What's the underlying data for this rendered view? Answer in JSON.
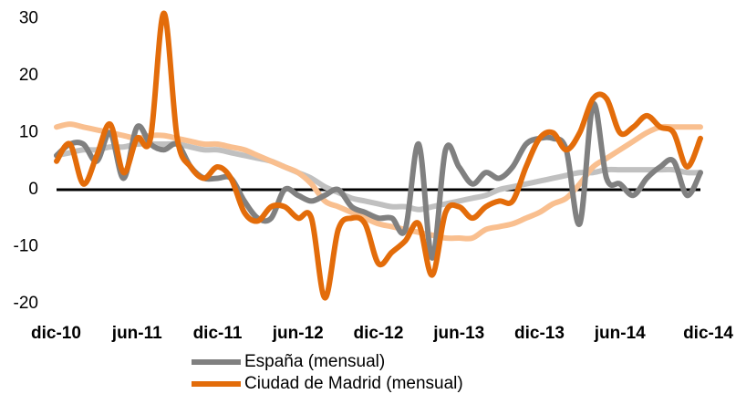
{
  "chart_data": {
    "type": "line",
    "categories": [
      "dic-10",
      null,
      null,
      null,
      null,
      null,
      "jun-11",
      null,
      null,
      null,
      null,
      null,
      "dic-11",
      null,
      null,
      null,
      null,
      null,
      "jun-12",
      null,
      null,
      null,
      null,
      null,
      "dic-12",
      null,
      null,
      null,
      null,
      null,
      "jun-13",
      null,
      null,
      null,
      null,
      null,
      "dic-13",
      null,
      null,
      null,
      null,
      null,
      "jun-14",
      null,
      null,
      null,
      null,
      null,
      "dic-14"
    ],
    "series": [
      {
        "color": "#c0c0c0",
        "values": [
          6,
          6.5,
          7,
          7,
          7.5,
          7.5,
          8,
          8,
          8,
          8,
          7.5,
          7,
          7,
          6.5,
          6,
          5.5,
          5,
          4,
          3,
          2,
          0.5,
          -0.5,
          -1.5,
          -2,
          -2.5,
          -3,
          -3,
          -3.5,
          -3,
          -2.5,
          -2,
          -1.5,
          -1,
          0,
          0.5,
          1,
          1.5,
          2,
          2.5,
          3,
          3,
          3.5,
          3.5,
          3.5,
          3.5,
          3.5,
          3.5,
          3,
          3
        ]
      },
      {
        "color": "#f9bf8f",
        "values": [
          11,
          11.5,
          11,
          10.5,
          10,
          9.5,
          9,
          9.5,
          9.5,
          9,
          8.5,
          8,
          8,
          7.5,
          7,
          6,
          5,
          4,
          3,
          1,
          -2,
          -3,
          -4,
          -5,
          -6,
          -6.5,
          -7,
          -7.5,
          -8,
          -8.5,
          -8.5,
          -8.5,
          -7,
          -6.5,
          -6,
          -5,
          -4,
          -2.5,
          -1.5,
          1,
          4,
          5.5,
          7,
          8.5,
          10,
          11,
          11,
          11,
          11
        ]
      },
      {
        "name": "España (mensual)",
        "color": "#808080",
        "values": [
          6,
          8,
          8,
          5,
          10,
          2,
          11,
          8,
          7,
          8,
          4,
          2,
          2,
          2,
          -2,
          -5,
          -5,
          0,
          -1,
          -2,
          -1,
          0,
          -3,
          -4,
          -5,
          -5,
          -7,
          8,
          -12,
          7,
          4,
          1,
          3,
          2,
          4,
          8,
          9,
          9,
          7,
          -6,
          15,
          2,
          1,
          -1,
          2,
          4,
          5,
          -1,
          3
        ]
      },
      {
        "name": "Ciudad de Madrid (mensual)",
        "color": "#e36c0a",
        "values": [
          5,
          8,
          1,
          6,
          11.5,
          3,
          9,
          9,
          31,
          9,
          4,
          2,
          4,
          2,
          -4,
          -5.5,
          -3,
          -3,
          -5,
          -5,
          -19,
          -7,
          -5,
          -6,
          -13,
          -11,
          -9,
          -6,
          -15,
          -4,
          -3,
          -5,
          -3,
          -2,
          -2,
          4,
          9,
          10,
          7,
          10,
          16,
          16,
          10,
          11,
          13,
          11,
          10,
          4,
          9
        ]
      }
    ],
    "ylim": [
      -21,
      33
    ],
    "yticks": [
      -20,
      -10,
      0,
      10,
      20,
      30
    ]
  }
}
